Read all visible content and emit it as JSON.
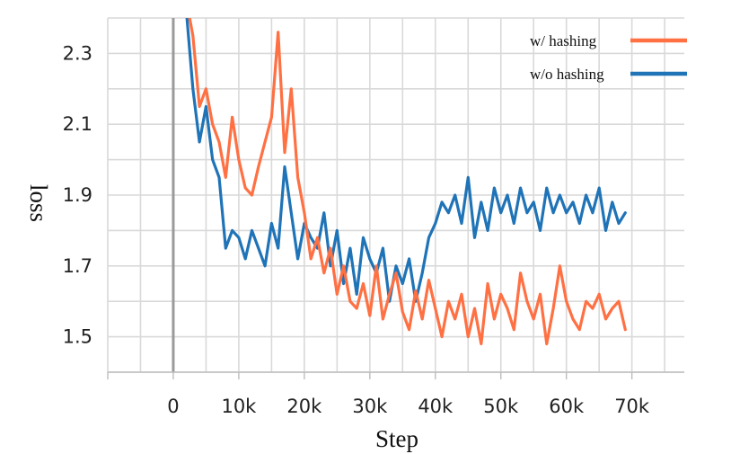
{
  "chart_data": {
    "type": "line",
    "xlabel": "Step",
    "ylabel": "loss",
    "xlim": [
      -10000,
      78000
    ],
    "ylim": [
      1.4,
      2.4
    ],
    "x_ticks": [
      0,
      10000,
      20000,
      30000,
      40000,
      50000,
      60000,
      70000
    ],
    "x_tick_labels": [
      "0",
      "10k",
      "20k",
      "30k",
      "40k",
      "50k",
      "60k",
      "70k"
    ],
    "y_ticks": [
      1.5,
      1.7,
      1.9,
      2.1,
      2.3
    ],
    "y_tick_labels": [
      "1.5",
      "1.7",
      "1.9",
      "2.1",
      "2.3"
    ],
    "grid": true,
    "legend_position": "top-right",
    "series": [
      {
        "name": "w/ hashing",
        "color": "#ff7043",
        "x": [
          2000,
          3000,
          4000,
          5000,
          6000,
          7000,
          8000,
          9000,
          10000,
          11000,
          12000,
          13000,
          14000,
          15000,
          16000,
          17000,
          18000,
          19000,
          20000,
          21000,
          22000,
          23000,
          24000,
          25000,
          26000,
          27000,
          28000,
          29000,
          30000,
          31000,
          32000,
          33000,
          34000,
          35000,
          36000,
          37000,
          38000,
          39000,
          40000,
          41000,
          42000,
          43000,
          44000,
          45000,
          46000,
          47000,
          48000,
          49000,
          50000,
          51000,
          52000,
          53000,
          54000,
          55000,
          56000,
          57000,
          58000,
          59000,
          60000,
          61000,
          62000,
          63000,
          64000,
          65000,
          66000,
          67000,
          68000,
          69000
        ],
        "y": [
          2.45,
          2.35,
          2.15,
          2.2,
          2.1,
          2.05,
          1.95,
          2.12,
          2.0,
          1.92,
          1.9,
          1.98,
          2.05,
          2.12,
          2.36,
          2.02,
          2.2,
          1.95,
          1.85,
          1.72,
          1.78,
          1.68,
          1.75,
          1.62,
          1.7,
          1.6,
          1.58,
          1.65,
          1.56,
          1.7,
          1.55,
          1.62,
          1.68,
          1.57,
          1.52,
          1.63,
          1.55,
          1.66,
          1.58,
          1.5,
          1.6,
          1.55,
          1.62,
          1.5,
          1.58,
          1.48,
          1.65,
          1.55,
          1.62,
          1.58,
          1.52,
          1.68,
          1.6,
          1.55,
          1.62,
          1.48,
          1.58,
          1.7,
          1.6,
          1.55,
          1.52,
          1.6,
          1.58,
          1.62,
          1.55,
          1.58,
          1.6,
          1.52
        ]
      },
      {
        "name": "w/o hashing",
        "color": "#1f73b7",
        "x": [
          2000,
          3000,
          4000,
          5000,
          6000,
          7000,
          8000,
          9000,
          10000,
          11000,
          12000,
          13000,
          14000,
          15000,
          16000,
          17000,
          18000,
          19000,
          20000,
          21000,
          22000,
          23000,
          24000,
          25000,
          26000,
          27000,
          28000,
          29000,
          30000,
          31000,
          32000,
          33000,
          34000,
          35000,
          36000,
          37000,
          38000,
          39000,
          40000,
          41000,
          42000,
          43000,
          44000,
          45000,
          46000,
          47000,
          48000,
          49000,
          50000,
          51000,
          52000,
          53000,
          54000,
          55000,
          56000,
          57000,
          58000,
          59000,
          60000,
          61000,
          62000,
          63000,
          64000,
          65000,
          66000,
          67000,
          68000,
          69000
        ],
        "y": [
          2.42,
          2.2,
          2.05,
          2.15,
          2.0,
          1.95,
          1.75,
          1.8,
          1.78,
          1.72,
          1.8,
          1.75,
          1.7,
          1.82,
          1.75,
          1.98,
          1.85,
          1.72,
          1.82,
          1.78,
          1.75,
          1.85,
          1.7,
          1.8,
          1.65,
          1.75,
          1.62,
          1.78,
          1.72,
          1.68,
          1.75,
          1.6,
          1.7,
          1.65,
          1.72,
          1.6,
          1.68,
          1.78,
          1.82,
          1.88,
          1.85,
          1.9,
          1.82,
          1.95,
          1.78,
          1.88,
          1.8,
          1.92,
          1.85,
          1.9,
          1.82,
          1.92,
          1.85,
          1.88,
          1.8,
          1.92,
          1.85,
          1.9,
          1.85,
          1.88,
          1.82,
          1.9,
          1.85,
          1.92,
          1.8,
          1.88,
          1.82,
          1.85
        ]
      }
    ]
  }
}
